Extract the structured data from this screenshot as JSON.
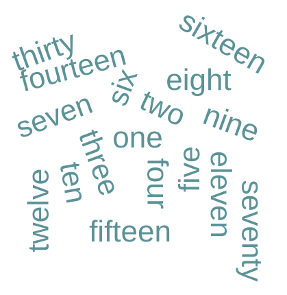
{
  "word_cloud": {
    "color": "#5b9297",
    "words": [
      {
        "text": "sixteen",
        "rotation_deg": 30
      },
      {
        "text": "thirty",
        "rotation_deg": -20
      },
      {
        "text": "fourteen",
        "rotation_deg": -15
      },
      {
        "text": "seven",
        "rotation_deg": -20
      },
      {
        "text": "six",
        "rotation_deg": -70
      },
      {
        "text": "eight",
        "rotation_deg": 0
      },
      {
        "text": "two",
        "rotation_deg": 25
      },
      {
        "text": "nine",
        "rotation_deg": 20
      },
      {
        "text": "one",
        "rotation_deg": 0
      },
      {
        "text": "three",
        "rotation_deg": 70
      },
      {
        "text": "twelve",
        "rotation_deg": -90
      },
      {
        "text": "ten",
        "rotation_deg": 80
      },
      {
        "text": "four",
        "rotation_deg": 90
      },
      {
        "text": "five",
        "rotation_deg": -90
      },
      {
        "text": "eleven",
        "rotation_deg": 90
      },
      {
        "text": "seventy",
        "rotation_deg": 90
      },
      {
        "text": "fifteen",
        "rotation_deg": 0
      }
    ]
  }
}
